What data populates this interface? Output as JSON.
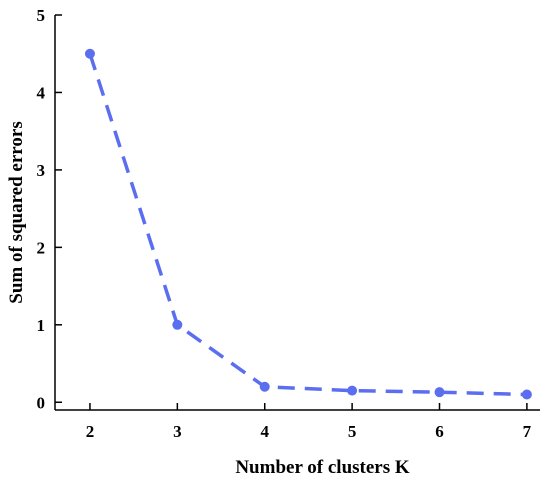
{
  "chart_data": {
    "type": "line",
    "title": "",
    "xlabel": "Number of clusters K",
    "ylabel": "Sum of squared errors",
    "x": [
      2,
      3,
      4,
      5,
      6,
      7
    ],
    "series": [
      {
        "values": [
          4.5,
          1.0,
          0.2,
          0.15,
          0.13,
          0.1
        ],
        "color": "#5b6ef0",
        "line_style": "dashed",
        "marker": "circle"
      }
    ],
    "xticks": [
      "2",
      "3",
      "4",
      "5",
      "6",
      "7"
    ],
    "yticks": [
      "0",
      "1",
      "2",
      "3",
      "4",
      "5"
    ],
    "xlim": [
      1.6,
      7.15
    ],
    "ylim": [
      -0.1,
      5.0
    ],
    "grid": false,
    "legend": "none"
  }
}
